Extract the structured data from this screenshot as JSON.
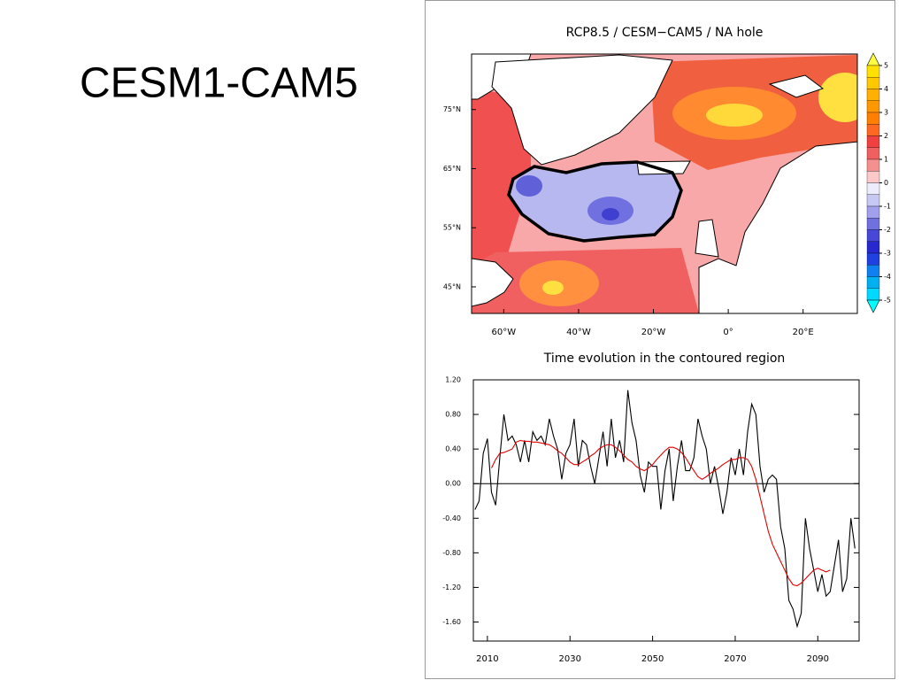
{
  "slide_title": "CESM1-CAM5",
  "chart_data": [
    {
      "type": "map",
      "title": "RCP8.5 / CESM−CAM5 / NA hole",
      "xlim": [
        -68.6,
        34.5
      ],
      "ylim": [
        40.5,
        84.4
      ],
      "xticks": [
        {
          "value": -60,
          "label": "60°W"
        },
        {
          "value": -40,
          "label": "40°W"
        },
        {
          "value": -20,
          "label": "20°W"
        },
        {
          "value": 0,
          "label": "0°"
        },
        {
          "value": 20,
          "label": "20°E"
        }
      ],
      "yticks": [
        {
          "value": 45,
          "label": "45°N"
        },
        {
          "value": 55,
          "label": "55°N"
        },
        {
          "value": 65,
          "label": "65°N"
        },
        {
          "value": 75,
          "label": "75°N"
        }
      ],
      "colorbar": {
        "ticks": [
          5,
          4,
          3,
          2,
          1,
          0,
          -1,
          -2,
          -3,
          -4,
          -5
        ],
        "colors": [
          "#ffff40",
          "#ffe000",
          "#ffc800",
          "#ffb000",
          "#ff9800",
          "#ff8000",
          "#ff6820",
          "#f04040",
          "#f06060",
          "#f49090",
          "#fcc8c8",
          "#ececfc",
          "#c8c8f4",
          "#a0a0ec",
          "#7070e0",
          "#4848d8",
          "#2828d0",
          "#2040e0",
          "#1080f0",
          "#00b0f0",
          "#00d8ff",
          "#00ffff"
        ]
      }
    },
    {
      "type": "line",
      "title": "Time evolution in the contoured region",
      "x": [
        2007,
        2008,
        2009,
        2010,
        2011,
        2012,
        2013,
        2014,
        2015,
        2016,
        2017,
        2018,
        2019,
        2020,
        2021,
        2022,
        2023,
        2024,
        2025,
        2026,
        2027,
        2028,
        2029,
        2030,
        2031,
        2032,
        2033,
        2034,
        2035,
        2036,
        2037,
        2038,
        2039,
        2040,
        2041,
        2042,
        2043,
        2044,
        2045,
        2046,
        2047,
        2048,
        2049,
        2050,
        2051,
        2052,
        2053,
        2054,
        2055,
        2056,
        2057,
        2058,
        2059,
        2060,
        2061,
        2062,
        2063,
        2064,
        2065,
        2066,
        2067,
        2068,
        2069,
        2070,
        2071,
        2072,
        2073,
        2074,
        2075,
        2076,
        2077,
        2078,
        2079,
        2080,
        2081,
        2082,
        2083,
        2084,
        2085,
        2086,
        2087,
        2088,
        2089,
        2090,
        2091,
        2092,
        2093,
        2094,
        2095,
        2096,
        2097,
        2098,
        2099
      ],
      "xlim": [
        2006.6,
        2100
      ],
      "ylim": [
        -1.82,
        1.2
      ],
      "xticks": [
        2010,
        2030,
        2050,
        2070,
        2090
      ],
      "yticks": [
        {
          "value": 1.2,
          "label": "1.20"
        },
        {
          "value": 0.8,
          "label": "0.80"
        },
        {
          "value": 0.4,
          "label": "0.40"
        },
        {
          "value": 0,
          "label": "0.00"
        },
        {
          "value": -0.4,
          "label": "-0.40"
        },
        {
          "value": -0.8,
          "label": "-0.80"
        },
        {
          "value": -1.2,
          "label": "-1.20"
        },
        {
          "value": -1.6,
          "label": "-1.60"
        }
      ],
      "zero_line": 0,
      "series": [
        {
          "color": "#000000",
          "values": [
            -0.3,
            -0.2,
            0.35,
            0.52,
            -0.1,
            -0.25,
            0.3,
            0.8,
            0.5,
            0.55,
            0.45,
            0.25,
            0.5,
            0.25,
            0.6,
            0.5,
            0.55,
            0.45,
            0.75,
            0.55,
            0.4,
            0.05,
            0.35,
            0.45,
            0.75,
            0.2,
            0.5,
            0.45,
            0.2,
            0.0,
            0.3,
            0.6,
            0.2,
            0.75,
            0.3,
            0.5,
            0.25,
            1.08,
            0.7,
            0.5,
            0.1,
            -0.1,
            0.25,
            0.2,
            0.2,
            -0.3,
            0.15,
            0.4,
            -0.2,
            0.2,
            0.5,
            0.15,
            0.15,
            0.3,
            0.75,
            0.55,
            0.4,
            0.0,
            0.2,
            -0.05,
            -0.35,
            -0.1,
            0.3,
            0.1,
            0.4,
            0.1,
            0.6,
            0.92,
            0.8,
            0.2,
            -0.1,
            0.05,
            0.1,
            0.05,
            -0.5,
            -0.75,
            -1.35,
            -1.45,
            -1.65,
            -1.5,
            -0.4,
            -0.75,
            -1.0,
            -1.25,
            -1.05,
            -1.3,
            -1.25,
            -0.95,
            -0.65,
            -1.25,
            -1.1,
            -0.4,
            -0.75
          ]
        },
        {
          "color": "#e00000",
          "values": [
            null,
            null,
            null,
            null,
            0.18,
            0.28,
            0.35,
            0.36,
            0.38,
            0.4,
            0.48,
            0.5,
            0.49,
            0.49,
            0.48,
            0.48,
            0.47,
            0.46,
            0.45,
            0.42,
            0.38,
            0.35,
            0.3,
            0.25,
            0.22,
            0.22,
            0.25,
            0.28,
            0.32,
            0.35,
            0.4,
            0.43,
            0.45,
            0.45,
            0.42,
            0.38,
            0.33,
            0.28,
            0.25,
            0.2,
            0.17,
            0.15,
            0.18,
            0.22,
            0.28,
            0.33,
            0.38,
            0.42,
            0.42,
            0.4,
            0.36,
            0.3,
            0.22,
            0.15,
            0.08,
            0.05,
            0.08,
            0.12,
            0.15,
            0.18,
            0.22,
            0.25,
            0.28,
            0.28,
            0.3,
            0.3,
            0.28,
            0.2,
            0.05,
            -0.15,
            -0.35,
            -0.55,
            -0.7,
            -0.8,
            -0.9,
            -1.0,
            -1.1,
            -1.17,
            -1.18,
            -1.15,
            -1.1,
            -1.05,
            -1.0,
            -0.98,
            -1.0,
            -1.02,
            -1.0,
            null,
            null,
            null,
            null,
            null,
            null
          ]
        }
      ]
    }
  ]
}
